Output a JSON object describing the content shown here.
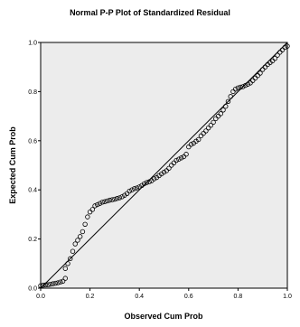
{
  "chart_data": {
    "type": "scatter",
    "title": "Normal P-P Plot of Standardized Residual",
    "xlabel": "Observed Cum Prob",
    "ylabel": "Expected Cum Prob",
    "xlim": [
      0,
      1
    ],
    "ylim": [
      0,
      1
    ],
    "xticks": [
      "0.0",
      "0.2",
      "0.4",
      "0.6",
      "0.8",
      "1.0"
    ],
    "yticks": [
      "0.0",
      "0.2",
      "0.4",
      "0.6",
      "0.8",
      "1.0"
    ],
    "reference_line": [
      [
        0,
        0
      ],
      [
        1,
        1
      ]
    ],
    "grid": false,
    "plot_background": "#ececec",
    "marker": "open-circle",
    "points": [
      [
        0.0,
        0.01
      ],
      [
        0.01,
        0.012
      ],
      [
        0.02,
        0.013
      ],
      [
        0.03,
        0.014
      ],
      [
        0.04,
        0.016
      ],
      [
        0.05,
        0.018
      ],
      [
        0.06,
        0.02
      ],
      [
        0.07,
        0.022
      ],
      [
        0.08,
        0.025
      ],
      [
        0.09,
        0.028
      ],
      [
        0.1,
        0.04
      ],
      [
        0.1,
        0.08
      ],
      [
        0.11,
        0.1
      ],
      [
        0.12,
        0.12
      ],
      [
        0.13,
        0.15
      ],
      [
        0.14,
        0.18
      ],
      [
        0.15,
        0.195
      ],
      [
        0.16,
        0.21
      ],
      [
        0.17,
        0.23
      ],
      [
        0.18,
        0.26
      ],
      [
        0.19,
        0.29
      ],
      [
        0.2,
        0.31
      ],
      [
        0.21,
        0.32
      ],
      [
        0.22,
        0.335
      ],
      [
        0.23,
        0.34
      ],
      [
        0.24,
        0.345
      ],
      [
        0.25,
        0.35
      ],
      [
        0.26,
        0.352
      ],
      [
        0.27,
        0.355
      ],
      [
        0.28,
        0.358
      ],
      [
        0.29,
        0.36
      ],
      [
        0.3,
        0.362
      ],
      [
        0.31,
        0.365
      ],
      [
        0.32,
        0.368
      ],
      [
        0.33,
        0.372
      ],
      [
        0.34,
        0.378
      ],
      [
        0.35,
        0.385
      ],
      [
        0.36,
        0.395
      ],
      [
        0.37,
        0.4
      ],
      [
        0.38,
        0.405
      ],
      [
        0.39,
        0.408
      ],
      [
        0.4,
        0.412
      ],
      [
        0.41,
        0.418
      ],
      [
        0.42,
        0.425
      ],
      [
        0.43,
        0.43
      ],
      [
        0.44,
        0.433
      ],
      [
        0.45,
        0.437
      ],
      [
        0.46,
        0.445
      ],
      [
        0.47,
        0.45
      ],
      [
        0.48,
        0.458
      ],
      [
        0.49,
        0.465
      ],
      [
        0.5,
        0.472
      ],
      [
        0.51,
        0.478
      ],
      [
        0.52,
        0.488
      ],
      [
        0.53,
        0.5
      ],
      [
        0.54,
        0.51
      ],
      [
        0.55,
        0.52
      ],
      [
        0.56,
        0.525
      ],
      [
        0.57,
        0.53
      ],
      [
        0.58,
        0.535
      ],
      [
        0.59,
        0.545
      ],
      [
        0.6,
        0.575
      ],
      [
        0.61,
        0.585
      ],
      [
        0.62,
        0.59
      ],
      [
        0.63,
        0.598
      ],
      [
        0.64,
        0.605
      ],
      [
        0.65,
        0.62
      ],
      [
        0.66,
        0.63
      ],
      [
        0.67,
        0.64
      ],
      [
        0.68,
        0.652
      ],
      [
        0.69,
        0.663
      ],
      [
        0.7,
        0.675
      ],
      [
        0.71,
        0.69
      ],
      [
        0.72,
        0.7
      ],
      [
        0.73,
        0.71
      ],
      [
        0.74,
        0.725
      ],
      [
        0.75,
        0.74
      ],
      [
        0.76,
        0.76
      ],
      [
        0.77,
        0.78
      ],
      [
        0.78,
        0.8
      ],
      [
        0.79,
        0.81
      ],
      [
        0.8,
        0.815
      ],
      [
        0.81,
        0.818
      ],
      [
        0.82,
        0.82
      ],
      [
        0.83,
        0.825
      ],
      [
        0.84,
        0.83
      ],
      [
        0.85,
        0.835
      ],
      [
        0.86,
        0.845
      ],
      [
        0.87,
        0.855
      ],
      [
        0.88,
        0.865
      ],
      [
        0.89,
        0.875
      ],
      [
        0.9,
        0.89
      ],
      [
        0.91,
        0.9
      ],
      [
        0.92,
        0.91
      ],
      [
        0.93,
        0.918
      ],
      [
        0.94,
        0.925
      ],
      [
        0.95,
        0.935
      ],
      [
        0.96,
        0.948
      ],
      [
        0.97,
        0.96
      ],
      [
        0.98,
        0.97
      ],
      [
        0.99,
        0.98
      ],
      [
        1.0,
        0.985
      ]
    ]
  }
}
